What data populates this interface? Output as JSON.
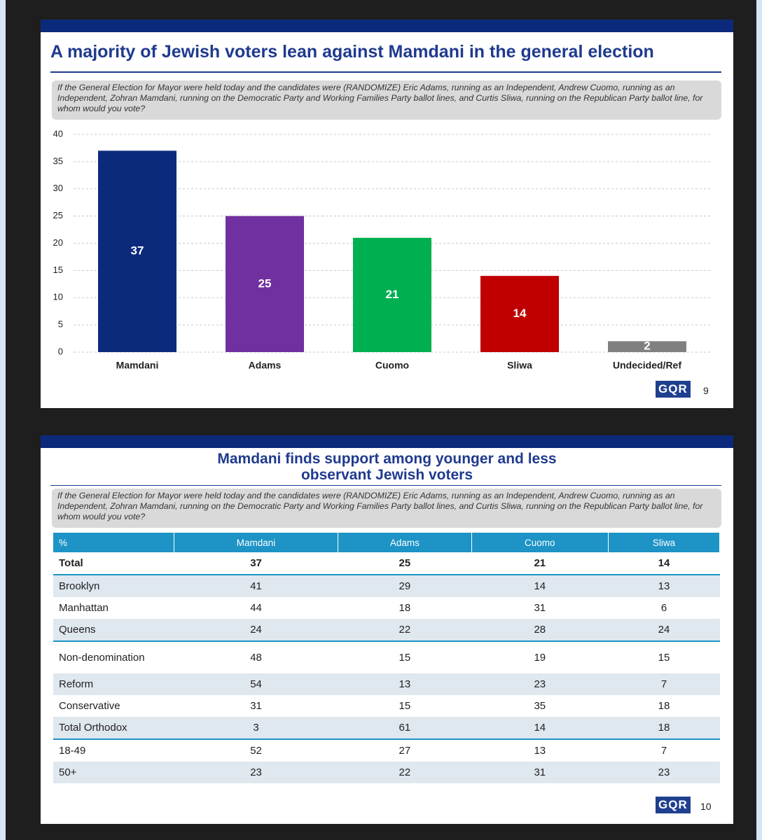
{
  "chart_data": {
    "type": "bar",
    "title": "A majority of Jewish voters lean against Mamdani in the general election",
    "subtitle": "If the General Election for Mayor were held today and the candidates were (RANDOMIZE) Eric Adams, running as an Independent, Andrew Cuomo, running as an Independent, Zohran Mamdani, running on the Democratic Party and Working Families Party ballot lines, and Curtis Sliwa, running on the Republican Party ballot line, for whom would you vote?",
    "categories": [
      "Mamdani",
      "Adams",
      "Cuomo",
      "Sliwa",
      "Undecided/Ref"
    ],
    "values": [
      37,
      25,
      21,
      14,
      2
    ],
    "colors": [
      "#0c2a7c",
      "#7030a0",
      "#00b050",
      "#c00000",
      "#808080"
    ],
    "ylim": [
      0,
      40
    ],
    "yticks": [
      0,
      5,
      10,
      15,
      20,
      25,
      30,
      35,
      40
    ],
    "grid": true
  },
  "footer1": {
    "logo": "GQR",
    "page": "9"
  },
  "table": {
    "title_lines": [
      "Mamdani finds support among younger and less",
      "observant Jewish voters"
    ],
    "question": "If the General Election for Mayor were held today and the candidates were (RANDOMIZE) Eric Adams, running as an Independent, Andrew Cuomo, running as an Independent, Zohran Mamdani, running on the Democratic Party and Working Families Party ballot lines, and Curtis Sliwa, running on the Republican Party ballot line, for whom would you vote?",
    "header": [
      "%",
      "Mamdani",
      "Adams",
      "Cuomo",
      "Sliwa"
    ],
    "rows": [
      [
        "Total",
        37,
        25,
        21,
        14
      ],
      [
        "Brooklyn",
        41,
        29,
        14,
        13
      ],
      [
        "Manhattan",
        44,
        18,
        31,
        6
      ],
      [
        "Queens",
        24,
        22,
        28,
        24
      ],
      [
        "Non-denomination",
        48,
        15,
        19,
        15
      ],
      [
        "Reform",
        54,
        13,
        23,
        7
      ],
      [
        "Conservative",
        31,
        15,
        35,
        18
      ],
      [
        "Total Orthodox",
        3,
        61,
        14,
        18
      ],
      [
        "18-49",
        52,
        27,
        13,
        7
      ],
      [
        "50+",
        23,
        22,
        31,
        23
      ]
    ],
    "logo": "GQR",
    "page": "10"
  }
}
